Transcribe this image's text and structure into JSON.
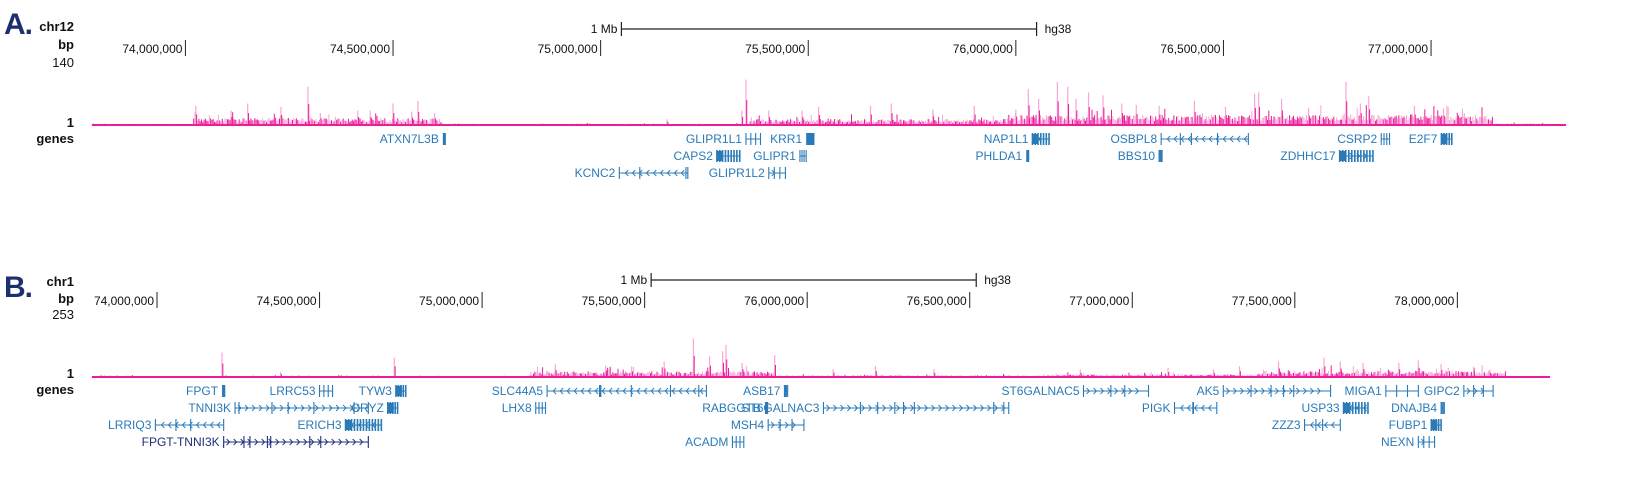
{
  "colors": {
    "signal": "#ec1c9a",
    "signal_light": "#f7a6d6",
    "gene": "#2a7ab8",
    "gene_dark": "#1f2d7a",
    "panel_letter": "#1c2f6e"
  },
  "chart_data": [
    {
      "type": "area",
      "panel_letter": "A.",
      "chromosome": "chr12",
      "axis_unit_label": "bp",
      "y_max_label": "140",
      "y_min_label": "1",
      "gene_track_label": "genes",
      "assembly": "hg38",
      "scale_bar_label": "1 Mb",
      "scale_bar": {
        "start": 75050000,
        "end": 76050000
      },
      "xlim": [
        73775000,
        77325000
      ],
      "ylim": [
        1,
        140
      ],
      "ticks": [
        {
          "value": 74000000,
          "label": "74,000,000"
        },
        {
          "value": 74500000,
          "label": "74,500,000"
        },
        {
          "value": 75000000,
          "label": "75,000,000"
        },
        {
          "value": 75500000,
          "label": "75,500,000"
        },
        {
          "value": 76000000,
          "label": "76,000,000"
        },
        {
          "value": 76500000,
          "label": "76,500,000"
        },
        {
          "value": 77000000,
          "label": "77,000,000"
        }
      ],
      "signal_regions": [
        {
          "start": 73775000,
          "end": 74020000,
          "level": 0.04
        },
        {
          "start": 74020000,
          "end": 74620000,
          "level": 0.25
        },
        {
          "start": 74620000,
          "end": 75360000,
          "level": 0.04
        },
        {
          "start": 75360000,
          "end": 75980000,
          "level": 0.22
        },
        {
          "start": 75980000,
          "end": 77150000,
          "level": 0.38
        },
        {
          "start": 77150000,
          "end": 77325000,
          "level": 0.05
        }
      ],
      "peaks": [
        {
          "pos": 74025000,
          "value": 40
        },
        {
          "pos": 74150000,
          "value": 45
        },
        {
          "pos": 74110000,
          "value": 30
        },
        {
          "pos": 74295000,
          "value": 80
        },
        {
          "pos": 74325000,
          "value": 25
        },
        {
          "pos": 74230000,
          "value": 38
        },
        {
          "pos": 74415000,
          "value": 30
        },
        {
          "pos": 74445000,
          "value": 30
        },
        {
          "pos": 74500000,
          "value": 45
        },
        {
          "pos": 74545000,
          "value": 28
        },
        {
          "pos": 74560000,
          "value": 50
        },
        {
          "pos": 74600000,
          "value": 25
        },
        {
          "pos": 75160000,
          "value": 12
        },
        {
          "pos": 75350000,
          "value": 95
        },
        {
          "pos": 75340000,
          "value": 30
        },
        {
          "pos": 75405000,
          "value": 30
        },
        {
          "pos": 75485000,
          "value": 30
        },
        {
          "pos": 75525000,
          "value": 38
        },
        {
          "pos": 75650000,
          "value": 40
        },
        {
          "pos": 75700000,
          "value": 45
        },
        {
          "pos": 75800000,
          "value": 32
        },
        {
          "pos": 75900000,
          "value": 40
        },
        {
          "pos": 76000000,
          "value": 32
        },
        {
          "pos": 76030000,
          "value": 75
        },
        {
          "pos": 76055000,
          "value": 55
        },
        {
          "pos": 76100000,
          "value": 90
        },
        {
          "pos": 76125000,
          "value": 80
        },
        {
          "pos": 76145000,
          "value": 55
        },
        {
          "pos": 76175000,
          "value": 68
        },
        {
          "pos": 76210000,
          "value": 62
        },
        {
          "pos": 76255000,
          "value": 45
        },
        {
          "pos": 76290000,
          "value": 42
        },
        {
          "pos": 76345000,
          "value": 40
        },
        {
          "pos": 76430000,
          "value": 50
        },
        {
          "pos": 76505000,
          "value": 38
        },
        {
          "pos": 76575000,
          "value": 65
        },
        {
          "pos": 76585000,
          "value": 68
        },
        {
          "pos": 76640000,
          "value": 55
        },
        {
          "pos": 76705000,
          "value": 35
        },
        {
          "pos": 76795000,
          "value": 90
        },
        {
          "pos": 76830000,
          "value": 45
        },
        {
          "pos": 76850000,
          "value": 60
        },
        {
          "pos": 76960000,
          "value": 40
        },
        {
          "pos": 77030000,
          "value": 35
        },
        {
          "pos": 77080000,
          "value": 25
        }
      ],
      "genes": [
        {
          "name": "ATXN7L3B",
          "start": 74620000,
          "end": 74625000,
          "row": 0,
          "strand": "",
          "shape": "block"
        },
        {
          "name": "GLIPR1L1",
          "start": 75350000,
          "end": 75385000,
          "row": 0,
          "strand": "",
          "shape": "exons"
        },
        {
          "name": "KRR1",
          "start": 75495000,
          "end": 75515000,
          "row": 0,
          "strand": "",
          "shape": "block"
        },
        {
          "name": "CAPS2",
          "start": 75280000,
          "end": 75335000,
          "row": 1,
          "strand": "",
          "shape": "dense"
        },
        {
          "name": "GLIPR1",
          "start": 75480000,
          "end": 75495000,
          "row": 1,
          "strand": "",
          "shape": "exons"
        },
        {
          "name": "KCNC2",
          "start": 75045000,
          "end": 75210000,
          "row": 2,
          "strand": "-",
          "shape": "intron"
        },
        {
          "name": "GLIPR1L2",
          "start": 75405000,
          "end": 75445000,
          "row": 2,
          "strand": "+",
          "shape": "exons"
        },
        {
          "name": "NAP1L1",
          "start": 76040000,
          "end": 76080000,
          "row": 0,
          "strand": "-",
          "shape": "dense"
        },
        {
          "name": "PHLDA1",
          "start": 76025000,
          "end": 76030000,
          "row": 1,
          "strand": "",
          "shape": "block"
        },
        {
          "name": "OSBPL8",
          "start": 76350000,
          "end": 76560000,
          "row": 0,
          "strand": "-",
          "shape": "intron"
        },
        {
          "name": "BBS10",
          "start": 76345000,
          "end": 76352000,
          "row": 1,
          "strand": "",
          "shape": "exons"
        },
        {
          "name": "CSRP2",
          "start": 76880000,
          "end": 76900000,
          "row": 0,
          "strand": "-",
          "shape": "exons"
        },
        {
          "name": "ZDHHC17",
          "start": 76780000,
          "end": 76860000,
          "row": 1,
          "strand": "+",
          "shape": "dense"
        },
        {
          "name": "E2F7",
          "start": 77025000,
          "end": 77050000,
          "row": 0,
          "strand": "",
          "shape": "dense"
        }
      ]
    },
    {
      "type": "area",
      "panel_letter": "B.",
      "chromosome": "chr1",
      "axis_unit_label": "bp",
      "y_max_label": "253",
      "y_min_label": "1",
      "gene_track_label": "genes",
      "assembly": "hg38",
      "scale_bar_label": "1 Mb",
      "scale_bar": {
        "start": 75520000,
        "end": 76520000
      },
      "xlim": [
        73800000,
        78285000
      ],
      "ylim": [
        1,
        253
      ],
      "ticks": [
        {
          "value": 74000000,
          "label": "74,000,000"
        },
        {
          "value": 74500000,
          "label": "74,500,000"
        },
        {
          "value": 75000000,
          "label": "75,000,000"
        },
        {
          "value": 75500000,
          "label": "75,500,000"
        },
        {
          "value": 76000000,
          "label": "76,000,000"
        },
        {
          "value": 76500000,
          "label": "76,500,000"
        },
        {
          "value": 77000000,
          "label": "77,000,000"
        },
        {
          "value": 77500000,
          "label": "77,500,000"
        },
        {
          "value": 78000000,
          "label": "78,000,000"
        }
      ],
      "signal_regions": [
        {
          "start": 73800000,
          "end": 75150000,
          "level": 0.04
        },
        {
          "start": 75150000,
          "end": 75900000,
          "level": 0.22
        },
        {
          "start": 75900000,
          "end": 76750000,
          "level": 0.06
        },
        {
          "start": 76750000,
          "end": 77400000,
          "level": 0.1
        },
        {
          "start": 77400000,
          "end": 78150000,
          "level": 0.24
        },
        {
          "start": 78150000,
          "end": 78285000,
          "level": 0.03
        }
      ],
      "peaks": [
        {
          "pos": 74200000,
          "value": 95
        },
        {
          "pos": 74380000,
          "value": 20
        },
        {
          "pos": 74730000,
          "value": 75
        },
        {
          "pos": 75225000,
          "value": 50
        },
        {
          "pos": 75380000,
          "value": 45
        },
        {
          "pos": 75460000,
          "value": 40
        },
        {
          "pos": 75560000,
          "value": 60
        },
        {
          "pos": 75650000,
          "value": 150
        },
        {
          "pos": 75700000,
          "value": 80
        },
        {
          "pos": 75740000,
          "value": 100
        },
        {
          "pos": 75750000,
          "value": 125
        },
        {
          "pos": 75800000,
          "value": 55
        },
        {
          "pos": 75900000,
          "value": 85
        },
        {
          "pos": 76080000,
          "value": 30
        },
        {
          "pos": 76210000,
          "value": 42
        },
        {
          "pos": 76390000,
          "value": 30
        },
        {
          "pos": 76840000,
          "value": 30
        },
        {
          "pos": 77110000,
          "value": 35
        },
        {
          "pos": 77250000,
          "value": 30
        },
        {
          "pos": 77330000,
          "value": 42
        },
        {
          "pos": 77450000,
          "value": 60
        },
        {
          "pos": 77590000,
          "value": 75
        },
        {
          "pos": 77640000,
          "value": 60
        },
        {
          "pos": 77710000,
          "value": 55
        },
        {
          "pos": 77820000,
          "value": 55
        },
        {
          "pos": 77880000,
          "value": 65
        },
        {
          "pos": 77950000,
          "value": 50
        },
        {
          "pos": 78050000,
          "value": 40
        },
        {
          "pos": 78100000,
          "value": 30
        }
      ],
      "genes": [
        {
          "name": "FPGT",
          "start": 74200000,
          "end": 74210000,
          "row": 0,
          "strand": "",
          "shape": "block"
        },
        {
          "name": "LRRC53",
          "start": 74500000,
          "end": 74540000,
          "row": 0,
          "strand": "-",
          "shape": "exons"
        },
        {
          "name": "TYW3",
          "start": 74735000,
          "end": 74765000,
          "row": 0,
          "strand": "",
          "shape": "dense"
        },
        {
          "name": "TNNI3K",
          "start": 74240000,
          "end": 74650000,
          "row": 1,
          "strand": "+",
          "shape": "intron"
        },
        {
          "name": "CRYZ",
          "start": 74710000,
          "end": 74740000,
          "row": 1,
          "strand": "",
          "shape": "dense"
        },
        {
          "name": "LRRIQ3",
          "start": 73995000,
          "end": 74205000,
          "row": 2,
          "strand": "-",
          "shape": "intron"
        },
        {
          "name": "ERICH3",
          "start": 74580000,
          "end": 74690000,
          "row": 2,
          "strand": "-",
          "shape": "dense"
        },
        {
          "name": "FPGT-TNNI3K",
          "start": 74205000,
          "end": 74650000,
          "row": 3,
          "strand": "+",
          "shape": "intron",
          "dark": true
        },
        {
          "name": "SLC44A5",
          "start": 75200000,
          "end": 75690000,
          "row": 0,
          "strand": "-",
          "shape": "intron"
        },
        {
          "name": "LHX8",
          "start": 75165000,
          "end": 75195000,
          "row": 1,
          "strand": "",
          "shape": "exons"
        },
        {
          "name": "ASB17",
          "start": 75930000,
          "end": 75940000,
          "row": 0,
          "strand": "",
          "shape": "exons"
        },
        {
          "name": "RABGGTB",
          "start": 75870000,
          "end": 75880000,
          "row": 1,
          "strand": "",
          "shape": "block"
        },
        {
          "name": "ST6GALNAC3",
          "start": 76050000,
          "end": 76620000,
          "row": 1,
          "strand": "+",
          "shape": "intron"
        },
        {
          "name": "MSH4",
          "start": 75880000,
          "end": 75990000,
          "row": 2,
          "strand": "+",
          "shape": "exons"
        },
        {
          "name": "ACADM",
          "start": 75770000,
          "end": 75805000,
          "row": 3,
          "strand": "",
          "shape": "exons"
        },
        {
          "name": "ST6GALNAC5",
          "start": 76850000,
          "end": 77050000,
          "row": 0,
          "strand": "+",
          "shape": "intron"
        },
        {
          "name": "PIGK",
          "start": 77130000,
          "end": 77260000,
          "row": 1,
          "strand": "-",
          "shape": "intron"
        },
        {
          "name": "AK5",
          "start": 77280000,
          "end": 77610000,
          "row": 0,
          "strand": "+",
          "shape": "intron"
        },
        {
          "name": "MIGA1",
          "start": 77780000,
          "end": 77880000,
          "row": 0,
          "strand": "",
          "shape": "exons"
        },
        {
          "name": "GIPC2",
          "start": 78020000,
          "end": 78110000,
          "row": 0,
          "strand": "+",
          "shape": "exons"
        },
        {
          "name": "USP33",
          "start": 77650000,
          "end": 77725000,
          "row": 1,
          "strand": "-",
          "shape": "dense"
        },
        {
          "name": "DNAJB4",
          "start": 77950000,
          "end": 77960000,
          "row": 1,
          "strand": "",
          "shape": "exons"
        },
        {
          "name": "ZZZ3",
          "start": 77530000,
          "end": 77640000,
          "row": 2,
          "strand": "-",
          "shape": "intron"
        },
        {
          "name": "FUBP1",
          "start": 77920000,
          "end": 77950000,
          "row": 2,
          "strand": "",
          "shape": "dense"
        },
        {
          "name": "NEXN",
          "start": 77880000,
          "end": 77930000,
          "row": 3,
          "strand": "+",
          "shape": "exons"
        }
      ]
    }
  ]
}
